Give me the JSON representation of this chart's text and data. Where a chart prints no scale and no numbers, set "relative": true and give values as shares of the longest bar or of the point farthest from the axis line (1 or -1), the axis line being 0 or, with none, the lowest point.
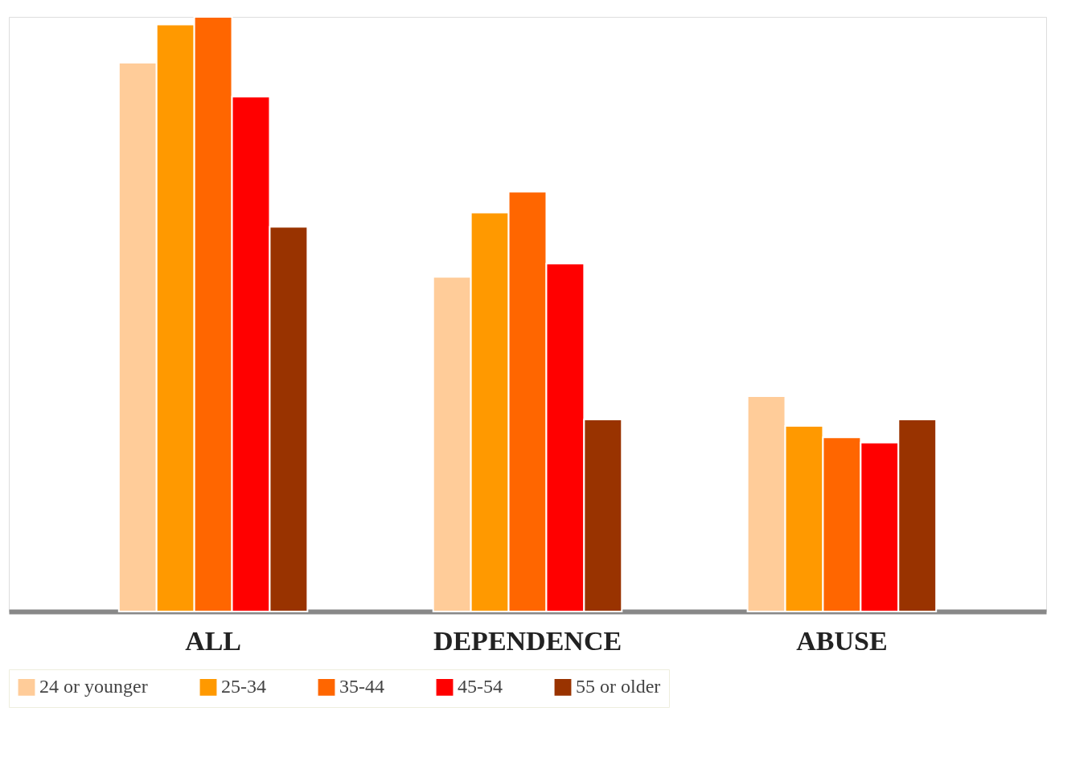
{
  "chart_data": {
    "type": "bar",
    "relative": true,
    "categories": [
      "ALL",
      "DEPENDENCE",
      "ABUSE"
    ],
    "series": [
      {
        "name": "24 or younger",
        "color": "#ffcc99",
        "values": [
          0.923,
          0.563,
          0.362
        ]
      },
      {
        "name": "25-34",
        "color": "#ff9900",
        "values": [
          0.987,
          0.671,
          0.312
        ]
      },
      {
        "name": "35-44",
        "color": "#ff6600",
        "values": [
          1,
          0.706,
          0.293
        ]
      },
      {
        "name": "45-54",
        "color": "#ff0000",
        "values": [
          0.866,
          0.585,
          0.284
        ]
      },
      {
        "name": "55 or older",
        "color": "#993300",
        "values": [
          0.647,
          0.323,
          0.323
        ]
      }
    ],
    "legend": "bottom",
    "grid": false
  }
}
